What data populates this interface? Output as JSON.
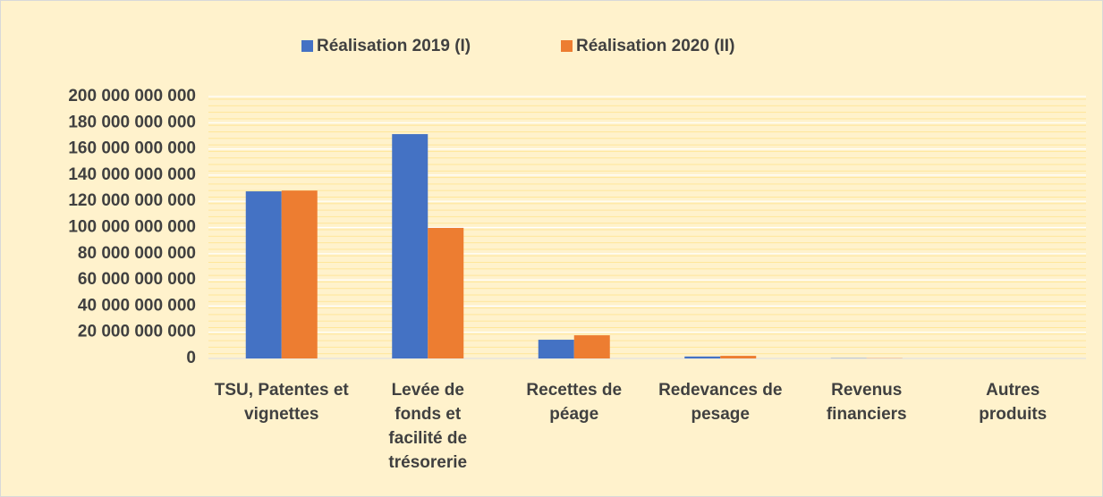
{
  "chart_data": {
    "type": "bar",
    "categories": [
      "TSU, Patentes et vignettes",
      "Levée de fonds et facilité de trésorerie",
      "Recettes de péage",
      "Redevances de pesage",
      "Revenus financiers",
      "Autres produits"
    ],
    "series": [
      {
        "name": "Réalisation 2019 (I)",
        "color": "#4472c4",
        "values": [
          127600000000,
          171300000000,
          14300000000,
          1500000000,
          200000000,
          0
        ]
      },
      {
        "name": "Réalisation 2020 (II)",
        "color": "#ed7d31",
        "values": [
          128200000000,
          99700000000,
          17700000000,
          2000000000,
          200000000,
          0
        ]
      }
    ],
    "ylim": [
      0,
      200000000000
    ],
    "yticks": [
      {
        "value": 0,
        "label": "0"
      },
      {
        "value": 20000000000,
        "label": "20 000 000 000"
      },
      {
        "value": 40000000000,
        "label": "40 000 000 000"
      },
      {
        "value": 60000000000,
        "label": "60 000 000 000"
      },
      {
        "value": 80000000000,
        "label": "80 000 000 000"
      },
      {
        "value": 100000000000,
        "label": "100 000 000 000"
      },
      {
        "value": 120000000000,
        "label": "120 000 000 000"
      },
      {
        "value": 140000000000,
        "label": "140 000 000 000"
      },
      {
        "value": 160000000000,
        "label": "160 000 000 000"
      },
      {
        "value": 180000000000,
        "label": "180 000 000 000"
      },
      {
        "value": 200000000000,
        "label": "200 000 000 000"
      }
    ],
    "grid": true,
    "legend": "top"
  }
}
